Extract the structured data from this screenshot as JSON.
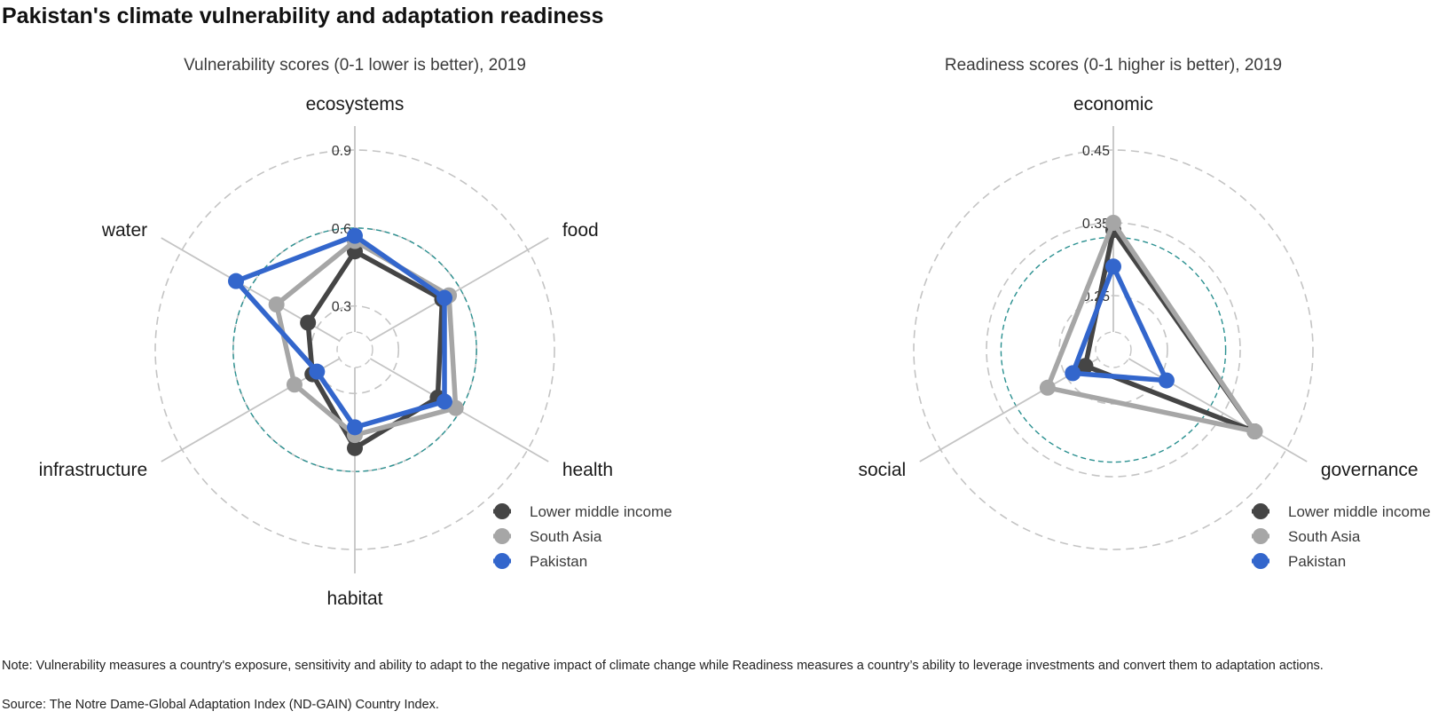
{
  "title": "Pakistan's climate vulnerability and adaptation readiness",
  "note": "Note: Vulnerability measures a country's exposure, sensitivity and ability to adapt to the negative impact of climate change while Readiness measures a country’s ability to leverage investments and convert them to adaptation actions.",
  "source": "Source: The Notre Dame-Global Adaptation Index (ND-GAIN) Country Index.",
  "colors": {
    "Lower middle income": "#454545",
    "South Asia": "#a6a6a6",
    "Pakistan": "#3366cc",
    "reference_ring": "#2a9090",
    "grid": "#c4c4c4"
  },
  "chart_data": [
    {
      "type": "radar",
      "title": "Vulnerability scores (0-1 lower is better), 2019",
      "axes": [
        "ecosystems",
        "food",
        "health",
        "habitat",
        "infrastructure",
        "water"
      ],
      "rlim": [
        0.2,
        0.9
      ],
      "ticks": [
        0.3,
        0.6,
        0.9
      ],
      "tick_labels": [
        "0.3",
        "0.6",
        "0.9"
      ],
      "reference_ring": 0.6,
      "legend_position": "bottom-right",
      "series": [
        {
          "name": "Lower middle income",
          "values": [
            0.51,
            0.52,
            0.5,
            0.51,
            0.32,
            0.34
          ]
        },
        {
          "name": "South Asia",
          "values": [
            0.55,
            0.55,
            0.58,
            0.46,
            0.4,
            0.48
          ]
        },
        {
          "name": "Pakistan",
          "values": [
            0.57,
            0.53,
            0.53,
            0.43,
            0.3,
            0.66
          ]
        }
      ]
    },
    {
      "type": "radar",
      "title": "Readiness scores (0-1 higher is better), 2019",
      "axes": [
        "economic",
        "governance",
        "social"
      ],
      "rlim": [
        0.2,
        0.45
      ],
      "ticks": [
        0.25,
        0.35,
        0.45
      ],
      "tick_labels": [
        "0.25",
        "0.35",
        "0.45"
      ],
      "reference_ring": 0.33,
      "legend_position": "bottom-right",
      "series": [
        {
          "name": "Lower middle income",
          "values": [
            0.34,
            0.4,
            0.22
          ]
        },
        {
          "name": "South Asia",
          "values": [
            0.35,
            0.4,
            0.28
          ]
        },
        {
          "name": "Pakistan",
          "values": [
            0.29,
            0.26,
            0.24
          ]
        }
      ]
    }
  ]
}
